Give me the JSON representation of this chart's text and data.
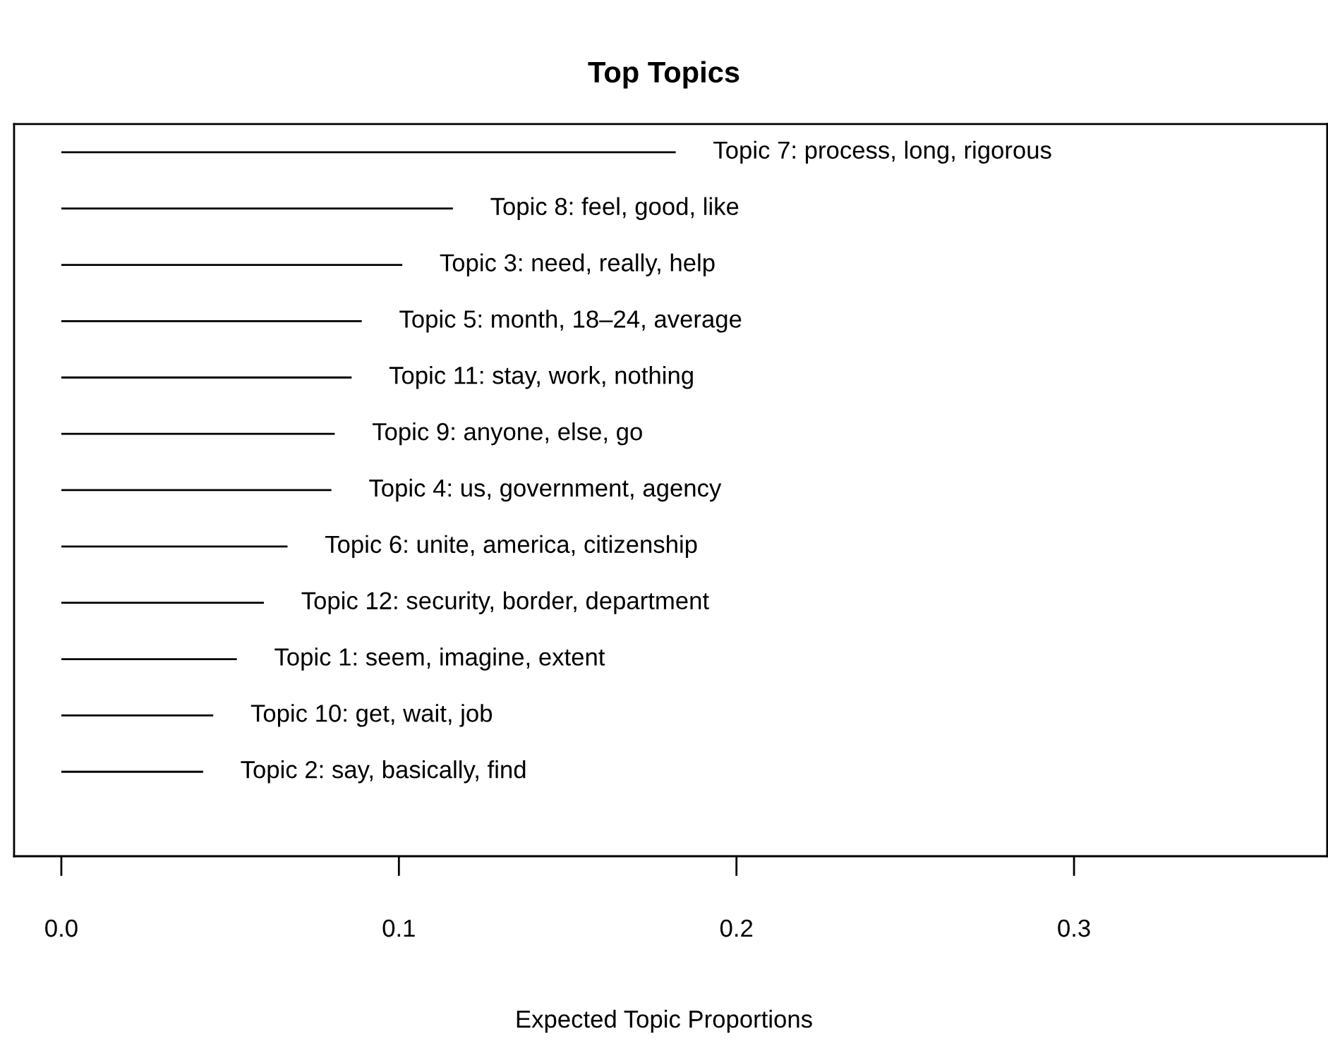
{
  "chart_data": {
    "type": "bar",
    "orientation": "horizontal",
    "title": "Top Topics",
    "xlabel": "Expected Topic Proportions",
    "categories": [
      "Topic 7: process, long, rigorous",
      "Topic 8: feel, good, like",
      "Topic 3: need, really, help",
      "Topic 5: month, 18–24, average",
      "Topic 11: stay, work, nothing",
      "Topic 9: anyone, else, go",
      "Topic 4: us, government, agency",
      "Topic 6: unite, america, citizenship",
      "Topic 12: security, border, department",
      "Topic 1: seem, imagine, extent",
      "Topic 10: get, wait, job",
      "Topic 2: say, basically, find"
    ],
    "values": [
      0.182,
      0.116,
      0.101,
      0.089,
      0.086,
      0.081,
      0.08,
      0.067,
      0.06,
      0.052,
      0.045,
      0.042
    ],
    "color": "#000000",
    "xlim": [
      -0.014,
      0.375
    ],
    "xticks": [
      {
        "value": 0,
        "label": "0.0"
      },
      0.1,
      0.2,
      0.3
    ],
    "tick_labels": "x",
    "grid": false
  }
}
